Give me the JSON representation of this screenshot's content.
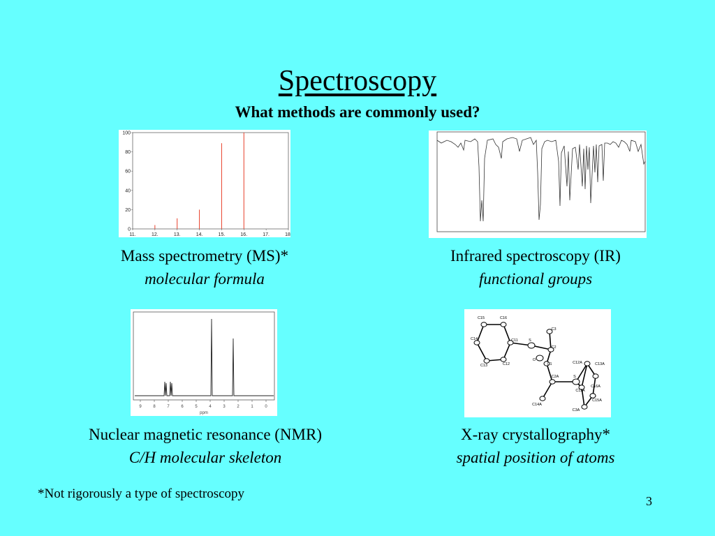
{
  "slide": {
    "title": "Spectroscopy",
    "subtitle": "What methods are commonly used?",
    "footnote": "*Not rigorously a type of spectroscopy",
    "page_number": "3"
  },
  "methods": [
    {
      "name": "Mass spectrometry (MS)*",
      "use": "molecular formula"
    },
    {
      "name": "Infrared spectroscopy (IR)",
      "use": "functional groups"
    },
    {
      "name": "Nuclear magnetic resonance (NMR)",
      "use": "C/H molecular skeleton"
    },
    {
      "name": "X-ray crystallography*",
      "use": "spatial position of atoms"
    }
  ],
  "ms_spectrum": {
    "y_ticks": [
      "100",
      "80",
      "60",
      "40",
      "20",
      "0"
    ],
    "x_ticks": [
      "11.",
      "12.",
      "13.",
      "14.",
      "15.",
      "16.",
      "17.",
      "18."
    ],
    "peaks": [
      {
        "x": 12,
        "y": 4
      },
      {
        "x": 13,
        "y": 11
      },
      {
        "x": 14,
        "y": 20
      },
      {
        "x": 15,
        "y": 89
      },
      {
        "x": 16,
        "y": 100
      }
    ]
  },
  "nmr_spectrum": {
    "x_ticks": [
      "9",
      "8",
      "7",
      "6",
      "5",
      "4",
      "3",
      "2",
      "1",
      "0"
    ],
    "x_unit": "ppm"
  },
  "xray_atom_labels": [
    "C15",
    "C16",
    "C14",
    "C11",
    "C13",
    "C12",
    "S",
    "C3",
    "C2",
    "O",
    "C1",
    "C2A",
    "S",
    "C12A",
    "C13A",
    "C11A",
    "C14A",
    "C3A",
    "C16A",
    "C15A"
  ],
  "colors": {
    "background": "#66FFFF",
    "ms_peaks": "#E8402A"
  }
}
